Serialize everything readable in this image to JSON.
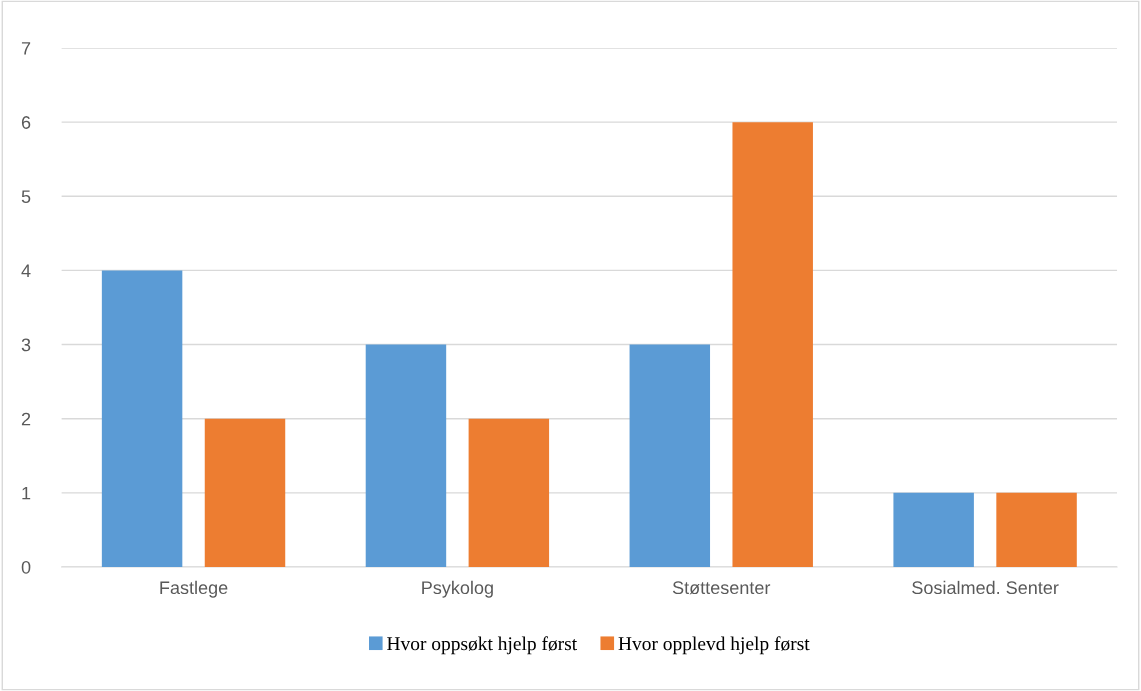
{
  "chart_data": {
    "type": "bar",
    "categories": [
      "Fastlege",
      "Psykolog",
      "Støttesenter",
      "Sosialmed. Senter"
    ],
    "series": [
      {
        "name": "Hvor oppsøkt hjelp først",
        "color": "#5b9bd5",
        "values": [
          4,
          3,
          3,
          1
        ]
      },
      {
        "name": "Hvor opplevd hjelp først",
        "color": "#ed7d31",
        "values": [
          2,
          2,
          6,
          1
        ]
      }
    ],
    "ylim": [
      0,
      7
    ],
    "yticks": [
      0,
      1,
      2,
      3,
      4,
      5,
      6,
      7
    ],
    "grid": "y",
    "legend": "bottom"
  }
}
